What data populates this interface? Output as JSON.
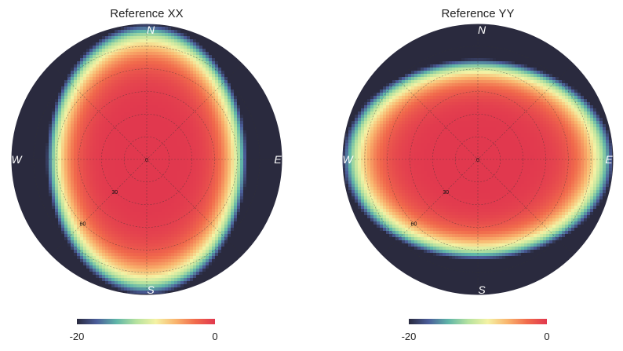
{
  "chart_data": [
    {
      "type": "heatmap",
      "projection": "polar",
      "title": "Reference XX",
      "compass_labels": {
        "north": "N",
        "south": "S",
        "east": "E",
        "west": "W"
      },
      "ring_labels": [
        "0",
        "30",
        "60"
      ],
      "za_grid_deg": [
        15,
        30,
        45,
        60,
        75
      ],
      "az_grid_deg": [
        0,
        45,
        90,
        135
      ],
      "beam": {
        "horizon_db": -20,
        "e_falloff": 1.35,
        "n_falloff": 1.0
      },
      "colorbar": {
        "range": [
          -20,
          0
        ],
        "tick_labels": [
          "-20",
          "0"
        ]
      }
    },
    {
      "type": "heatmap",
      "projection": "polar",
      "title": "Reference YY",
      "compass_labels": {
        "north": "N",
        "south": "S",
        "east": "E",
        "west": "W"
      },
      "ring_labels": [
        "0",
        "30",
        "60"
      ],
      "za_grid_deg": [
        15,
        30,
        45,
        60,
        75
      ],
      "az_grid_deg": [
        0,
        45,
        90,
        135
      ],
      "beam": {
        "horizon_db": -20,
        "e_falloff": 1.0,
        "n_falloff": 1.35
      },
      "colorbar": {
        "range": [
          -20,
          0
        ],
        "tick_labels": [
          "-20",
          "0"
        ]
      }
    }
  ],
  "colormap_stops": [
    "#2a2a3e",
    "#4b5d9a",
    "#5fb5a8",
    "#b5e29f",
    "#f4f2a4",
    "#f9b56e",
    "#f16b4c",
    "#e1384e"
  ]
}
